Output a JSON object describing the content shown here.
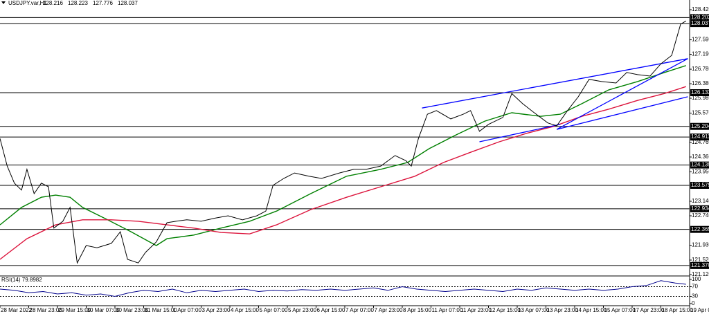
{
  "chart_data": [
    {
      "type": "line",
      "title": "USDJPY.var,H1",
      "ohlc": [
        128.216,
        128.223,
        127.776,
        128.037
      ],
      "color": "#000000",
      "xlim": [
        0,
        384
      ],
      "ylim": [
        121.12,
        128.42
      ],
      "x": [
        0,
        4,
        8,
        12,
        15,
        19,
        23,
        27,
        30,
        35,
        39,
        40,
        43,
        48,
        54,
        62,
        67,
        71,
        77,
        81,
        87,
        93,
        98,
        104,
        112,
        120,
        127,
        135,
        143,
        148,
        152,
        158,
        164,
        172,
        179,
        189,
        197,
        204,
        212,
        220,
        226,
        229,
        233,
        238,
        243,
        251,
        258,
        262,
        267,
        272,
        280,
        285,
        291,
        297,
        305,
        310,
        316,
        322,
        328,
        335,
        343,
        349,
        355,
        362,
        368,
        374,
        379,
        382
      ],
      "values": [
        124.87,
        124.11,
        123.64,
        123.45,
        124.02,
        123.35,
        123.64,
        123.54,
        122.4,
        122.59,
        122.97,
        122.59,
        121.44,
        121.92,
        121.86,
        121.98,
        122.3,
        121.54,
        121.44,
        121.73,
        122.02,
        122.55,
        122.59,
        122.63,
        122.59,
        122.68,
        122.74,
        122.63,
        122.74,
        122.87,
        123.58,
        123.77,
        123.92,
        123.83,
        123.77,
        123.92,
        124.02,
        124.02,
        124.11,
        124.4,
        124.26,
        124.11,
        124.87,
        125.54,
        125.64,
        125.41,
        125.54,
        125.64,
        125.07,
        125.26,
        125.45,
        126.11,
        125.83,
        125.6,
        125.3,
        125.22,
        125.64,
        126.02,
        126.5,
        126.44,
        126.4,
        126.69,
        126.63,
        126.59,
        126.93,
        127.16,
        128.02,
        128.11
      ],
      "overlays": [
        {
          "color": "#008000",
          "x": [
            0,
            12,
            23,
            31,
            39,
            46,
            58,
            73,
            87,
            93,
            108,
            123,
            139,
            154,
            173,
            193,
            212,
            227,
            239,
            254,
            270,
            285,
            301,
            312,
            324,
            339,
            355,
            370,
            382
          ],
          "values": [
            122.49,
            122.97,
            123.25,
            123.31,
            123.25,
            122.97,
            122.68,
            122.3,
            121.92,
            122.11,
            122.21,
            122.4,
            122.59,
            122.87,
            123.35,
            123.83,
            124.02,
            124.21,
            124.59,
            124.97,
            125.35,
            125.58,
            125.48,
            125.54,
            125.83,
            126.21,
            126.44,
            126.69,
            126.88
          ]
        },
        {
          "color": "#dc143c",
          "x": [
            0,
            15,
            31,
            46,
            62,
            77,
            93,
            108,
            123,
            139,
            154,
            173,
            193,
            212,
            231,
            247,
            262,
            278,
            293,
            308,
            324,
            339,
            355,
            370,
            382
          ],
          "values": [
            121.54,
            122.11,
            122.49,
            122.63,
            122.63,
            122.59,
            122.49,
            122.4,
            122.28,
            122.24,
            122.49,
            122.91,
            123.25,
            123.54,
            123.83,
            124.21,
            124.49,
            124.78,
            125.01,
            125.2,
            125.48,
            125.68,
            125.92,
            126.11,
            126.3
          ]
        }
      ],
      "trendlines": [
        {
          "color": "#0000ff",
          "x": [
            235,
            383
          ],
          "values": [
            125.71,
            127.07
          ]
        },
        {
          "color": "#0000ff",
          "x": [
            267,
            312
          ],
          "values": [
            124.78,
            125.26
          ]
        },
        {
          "color": "#0000ff",
          "x": [
            310,
            383
          ],
          "values": [
            125.12,
            127.07
          ]
        },
        {
          "color": "#0000ff",
          "x": [
            310,
            383
          ],
          "values": [
            125.12,
            126.02
          ]
        }
      ],
      "levels": [
        128.203,
        128.037,
        126.133,
        125.204,
        124.911,
        124.139,
        123.579,
        122.934,
        122.365,
        {
          "value": 121.37,
          "label": "121.370"
        }
      ],
      "yticks": [
        {
          "value": 128.42,
          "label": "128.420"
        },
        {
          "value": 127.59,
          "label": "127.590"
        },
        {
          "value": 127.19,
          "label": "127.190"
        },
        {
          "value": 126.78,
          "label": "126.780"
        },
        {
          "value": 126.38,
          "label": "126.380"
        },
        {
          "value": 125.98,
          "label": "125.980"
        },
        {
          "value": 125.57,
          "label": "125.570"
        },
        {
          "value": 124.76,
          "label": "124.760"
        },
        {
          "value": 124.36,
          "label": "124.360"
        },
        {
          "value": 123.95,
          "label": "123.950"
        },
        {
          "value": 123.14,
          "label": "123.140"
        },
        {
          "value": 122.74,
          "label": "122.740"
        },
        {
          "value": 121.93,
          "label": "121.930"
        },
        {
          "value": 121.52,
          "label": "121.520"
        },
        {
          "value": 121.12,
          "label": "121.120"
        }
      ],
      "xticks": [
        {
          "value": 0,
          "label": "28 Mar 2022"
        },
        {
          "value": 16,
          "label": "28 Mar 23:00"
        },
        {
          "value": 32,
          "label": "29 Mar 15:00"
        },
        {
          "value": 48,
          "label": "30 Mar 07:00"
        },
        {
          "value": 64,
          "label": "30 Mar 23:00"
        },
        {
          "value": 80,
          "label": "31 Mar 15:00"
        },
        {
          "value": 96,
          "label": "1 Apr 07:00"
        },
        {
          "value": 112,
          "label": "3 Apr 23:00"
        },
        {
          "value": 128,
          "label": "4 Apr 15:00"
        },
        {
          "value": 144,
          "label": "5 Apr 07:00"
        },
        {
          "value": 160,
          "label": "5 Apr 23:00"
        },
        {
          "value": 176,
          "label": "6 Apr 15:00"
        },
        {
          "value": 192,
          "label": "7 Apr 07:00"
        },
        {
          "value": 208,
          "label": "7 Apr 23:00"
        },
        {
          "value": 224,
          "label": "8 Apr 15:00"
        },
        {
          "value": 240,
          "label": "11 Apr 07:00"
        },
        {
          "value": 256,
          "label": "11 Apr 23:00"
        },
        {
          "value": 272,
          "label": "12 Apr 15:00"
        },
        {
          "value": 288,
          "label": "13 Apr 07:00"
        },
        {
          "value": 304,
          "label": "13 Apr 23:00"
        },
        {
          "value": 320,
          "label": "14 Apr 15:00"
        },
        {
          "value": 336,
          "label": "15 Apr 07:00"
        },
        {
          "value": 352,
          "label": "17 Apr 23:00"
        },
        {
          "value": 368,
          "label": "18 Apr 15:00"
        },
        {
          "value": 384,
          "label": "19 Apr 07:00"
        }
      ]
    },
    {
      "type": "line",
      "title": "RSI(14) 79.8982",
      "color": "#00008b",
      "xlim": [
        0,
        384
      ],
      "ylim": [
        0,
        100
      ],
      "yticks": [
        100,
        70,
        30,
        0
      ],
      "levels": [
        70,
        30
      ],
      "x": [
        0,
        8,
        16,
        24,
        32,
        40,
        48,
        56,
        64,
        72,
        80,
        88,
        96,
        104,
        112,
        120,
        128,
        136,
        144,
        152,
        160,
        168,
        176,
        184,
        192,
        200,
        208,
        216,
        224,
        232,
        240,
        248,
        256,
        264,
        272,
        280,
        288,
        296,
        304,
        312,
        320,
        328,
        336,
        344,
        352,
        360,
        368,
        376,
        382
      ],
      "values": [
        60,
        55,
        45,
        50,
        40,
        45,
        35,
        40,
        30,
        45,
        55,
        50,
        60,
        45,
        55,
        50,
        55,
        60,
        50,
        55,
        52,
        58,
        55,
        60,
        55,
        60,
        65,
        55,
        70,
        60,
        55,
        50,
        55,
        60,
        55,
        50,
        60,
        55,
        65,
        60,
        55,
        60,
        55,
        60,
        70,
        75,
        95,
        85,
        80
      ]
    }
  ]
}
